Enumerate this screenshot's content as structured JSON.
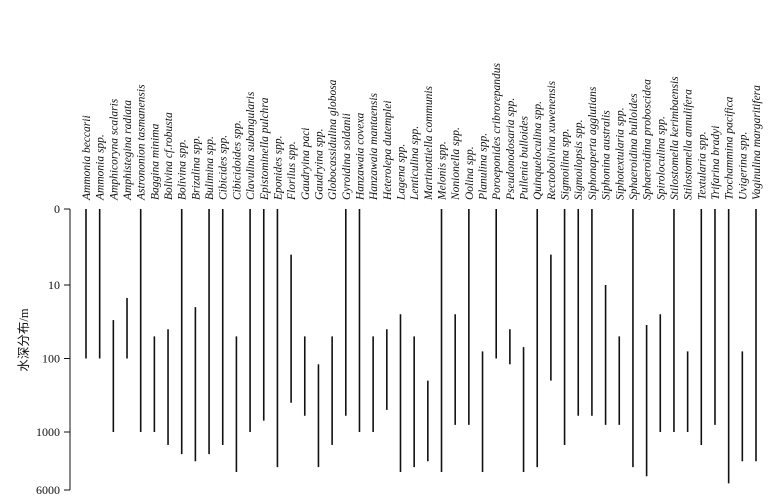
{
  "chart_data": {
    "type": "range-bar",
    "ylabel": "水深分布/m",
    "y_ticks": [
      0,
      10,
      100,
      1000,
      6000
    ],
    "y_axis": "depth (log scale, increasing downward)",
    "species": [
      {
        "name": "Ammonia beccarii",
        "min": 0,
        "max": 100
      },
      {
        "name": "Ammonia spp.",
        "min": 0,
        "max": 100
      },
      {
        "name": "Amphicoryna scalaris",
        "min": 30,
        "max": 1000
      },
      {
        "name": "Amphistegina radiata",
        "min": 15,
        "max": 100
      },
      {
        "name": "Astrononion tasmanensis",
        "min": 0,
        "max": 1000
      },
      {
        "name": "Baggina minima",
        "min": 50,
        "max": 1000
      },
      {
        "name": "Bolivina cf.robusta",
        "min": 40,
        "max": 1500
      },
      {
        "name": "Bolivina spp.",
        "min": 0,
        "max": 2000
      },
      {
        "name": "Brizalina spp.",
        "min": 20,
        "max": 2500
      },
      {
        "name": "Bulimina spp.",
        "min": 0,
        "max": 2000
      },
      {
        "name": "Cibicides spp.",
        "min": 0,
        "max": 1500
      },
      {
        "name": "Cibicidoides spp.",
        "min": 50,
        "max": 3500
      },
      {
        "name": "Clavulina subangularis",
        "min": 0,
        "max": 1000
      },
      {
        "name": "Epistominella pulchra",
        "min": 0,
        "max": 700
      },
      {
        "name": "Eponides spp.",
        "min": 0,
        "max": 3000
      },
      {
        "name": "Florilus spp.",
        "min": 6,
        "max": 400
      },
      {
        "name": "Gaudryina paci",
        "min": 50,
        "max": 600
      },
      {
        "name": "Gaudryina spp.",
        "min": 120,
        "max": 3000
      },
      {
        "name": "Globocassidulina globosa",
        "min": 50,
        "max": 1500
      },
      {
        "name": "Gyroidina soldanii",
        "min": 0,
        "max": 600
      },
      {
        "name": "Hanzawaia covexa",
        "min": 0,
        "max": 1000
      },
      {
        "name": "Hanzawaia mantaensis",
        "min": 50,
        "max": 1000
      },
      {
        "name": "Heterolepa dutemplei",
        "min": 40,
        "max": 500
      },
      {
        "name": "Lagena spp.",
        "min": 25,
        "max": 3500
      },
      {
        "name": "Lenticulina spp.",
        "min": 50,
        "max": 3000
      },
      {
        "name": "Martinottiella communis",
        "min": 200,
        "max": 2500
      },
      {
        "name": "Melonis spp.",
        "min": 0,
        "max": 3500
      },
      {
        "name": "Nonionella spp.",
        "min": 25,
        "max": 800
      },
      {
        "name": "Oolina spp.",
        "min": 0,
        "max": 800
      },
      {
        "name": "Planulina spp.",
        "min": 80,
        "max": 3500
      },
      {
        "name": "Poroeponides cribrorepandus",
        "min": 0,
        "max": 100
      },
      {
        "name": "Pseudonodosaria spp.",
        "min": 40,
        "max": 120
      },
      {
        "name": "Pullenia bulloides",
        "min": 70,
        "max": 3500
      },
      {
        "name": "Quinqueloculina spp.",
        "min": 0,
        "max": 3000
      },
      {
        "name": "Rectobolivina xuwenensis",
        "min": 6,
        "max": 200
      },
      {
        "name": "Sigmoilina spp.",
        "min": 0,
        "max": 1500
      },
      {
        "name": "Sigmoilopsis spp.",
        "min": 0,
        "max": 600
      },
      {
        "name": "Siphonaperta agglutians",
        "min": 0,
        "max": 600
      },
      {
        "name": "Siphonina australis",
        "min": 10,
        "max": 800
      },
      {
        "name": "Siphotextularia spp.",
        "min": 50,
        "max": 800
      },
      {
        "name": "Sphaeroidina bulloides",
        "min": 0,
        "max": 3000
      },
      {
        "name": "Sphaeroidina proboscidea",
        "min": 35,
        "max": 4000
      },
      {
        "name": "Spiroloculina spp.",
        "min": 25,
        "max": 1000
      },
      {
        "name": "Stilostomella kerimbaensis",
        "min": 0,
        "max": 1000
      },
      {
        "name": "Stilostomella annulifera",
        "min": 80,
        "max": 1000
      },
      {
        "name": "Textularia spp.",
        "min": 0,
        "max": 1500
      },
      {
        "name": "Trifarina bradyi",
        "min": 0,
        "max": 800
      },
      {
        "name": "Trochammina pacifica",
        "min": 0,
        "max": 5000
      },
      {
        "name": "Uvigerina spp.",
        "min": 80,
        "max": 2500
      },
      {
        "name": "Vaginulina margaritifera",
        "min": 0,
        "max": 2500
      }
    ]
  }
}
